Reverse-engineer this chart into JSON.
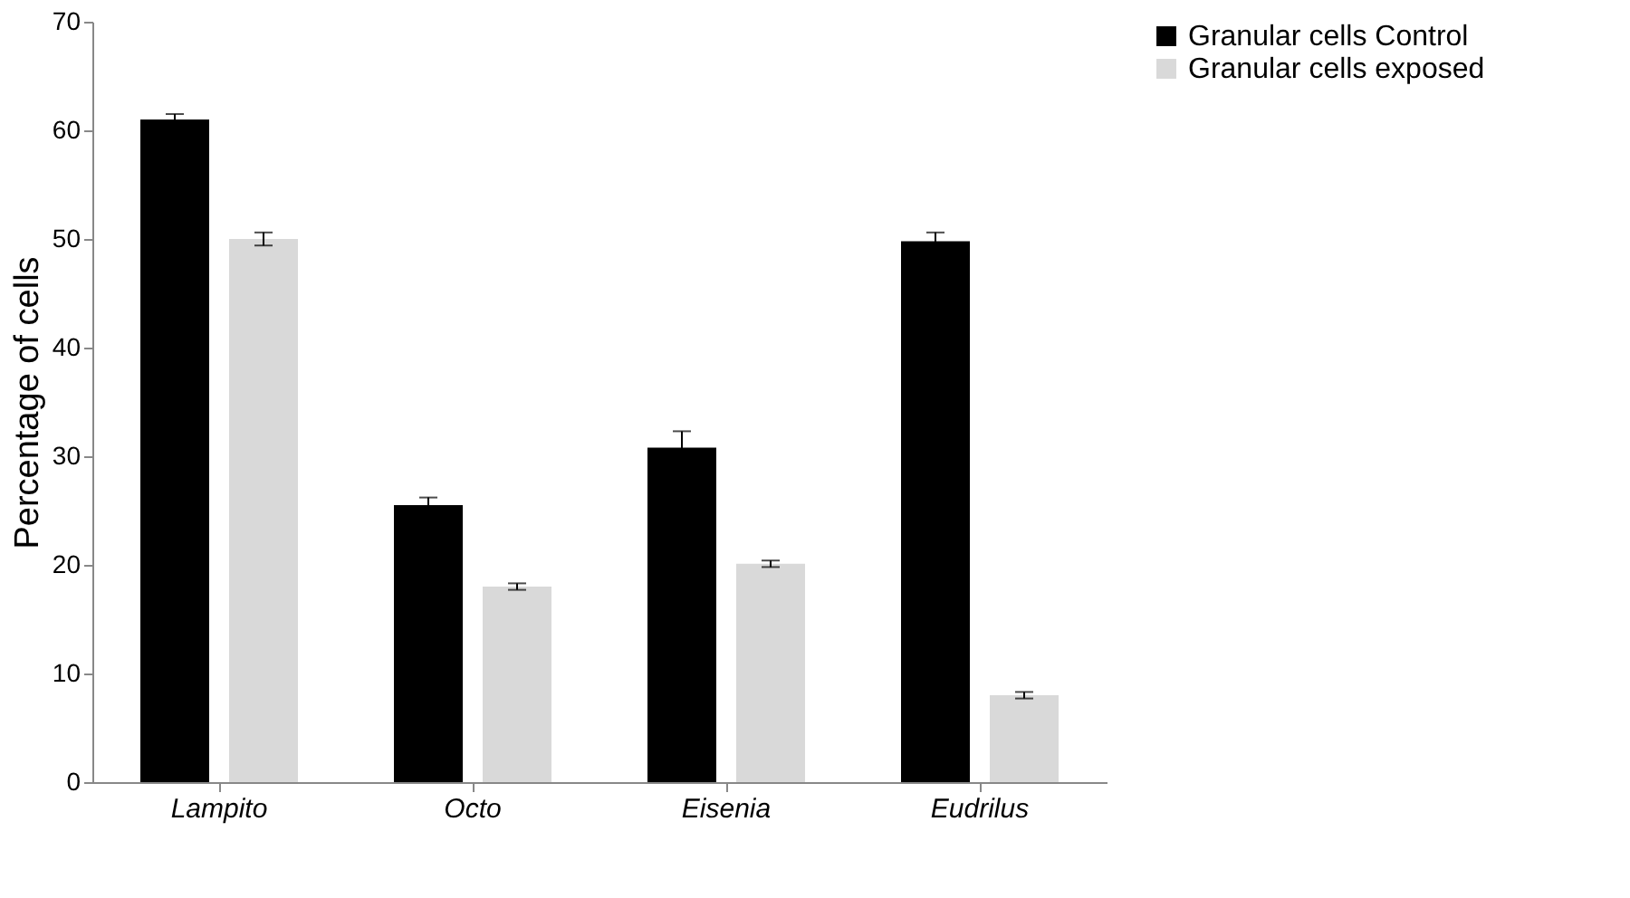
{
  "chart_data": {
    "type": "bar",
    "ylabel": "Percentage of cells",
    "categories": [
      "Lampito",
      "Octo",
      "Eisenia",
      "Eudrilus"
    ],
    "series": [
      {
        "name": "Granular cells Control",
        "color": "#000000",
        "values": [
          61,
          25.5,
          30.8,
          49.8
        ],
        "errors": [
          0.5,
          0.7,
          1.5,
          0.8
        ]
      },
      {
        "name": "Granular cells exposed",
        "color": "#d9d9d9",
        "values": [
          50,
          18,
          20.1,
          8
        ],
        "errors": [
          0.6,
          0.3,
          0.3,
          0.3
        ]
      }
    ],
    "ylim": [
      0,
      70
    ],
    "yticks": [
      0,
      10,
      20,
      30,
      40,
      50,
      60,
      70
    ],
    "grid": false,
    "legend": "right"
  }
}
